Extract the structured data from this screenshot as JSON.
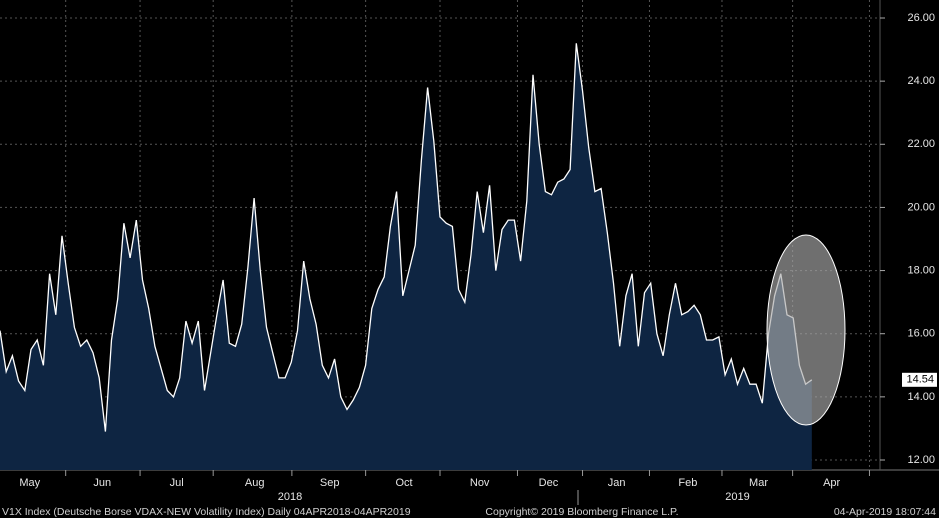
{
  "chart_data": {
    "type": "area",
    "values": [
      16.1,
      14.8,
      15.3,
      14.5,
      14.2,
      15.5,
      15.8,
      15.0,
      17.9,
      16.6,
      19.1,
      17.6,
      16.2,
      15.6,
      15.8,
      15.4,
      14.6,
      12.9,
      15.8,
      17.1,
      19.5,
      18.4,
      19.6,
      17.7,
      16.8,
      15.6,
      14.9,
      14.2,
      14.0,
      14.6,
      16.4,
      15.7,
      16.4,
      14.2,
      15.4,
      16.6,
      17.7,
      15.7,
      15.6,
      16.3,
      18.1,
      20.3,
      18.0,
      16.2,
      15.4,
      14.6,
      14.6,
      15.1,
      16.1,
      18.3,
      17.1,
      16.3,
      15.0,
      14.6,
      15.2,
      14.0,
      13.6,
      13.9,
      14.3,
      15.0,
      16.8,
      17.4,
      17.8,
      19.4,
      20.5,
      17.2,
      18.0,
      18.8,
      21.5,
      23.8,
      22.1,
      19.7,
      19.5,
      19.4,
      17.4,
      17.0,
      18.5,
      20.5,
      19.2,
      20.7,
      18.0,
      19.3,
      19.6,
      19.6,
      18.3,
      20.2,
      24.2,
      22.0,
      20.5,
      20.4,
      20.8,
      20.9,
      21.2,
      25.2,
      23.7,
      21.9,
      20.5,
      20.6,
      19.2,
      17.6,
      15.6,
      17.2,
      17.9,
      15.6,
      17.3,
      17.6,
      16.0,
      15.3,
      16.6,
      17.6,
      16.6,
      16.7,
      16.9,
      16.6,
      15.8,
      15.8,
      15.9,
      14.7,
      15.2,
      14.4,
      14.9,
      14.4,
      14.4,
      13.8,
      16.0,
      17.2,
      17.9,
      16.6,
      16.5,
      15.0,
      14.4,
      14.54
    ],
    "color": "#0e2542",
    "line_color": "#ffffff",
    "xlim": [
      0,
      142
    ],
    "xgrid": [
      10.6,
      22.6,
      34.4,
      47.1,
      59,
      71,
      83.5,
      94,
      104.8,
      116.5,
      127.9,
      140.3
    ],
    "month_labels": [
      {
        "value": 4.8,
        "label": "May"
      },
      {
        "value": 16.5,
        "label": "Jun"
      },
      {
        "value": 28.5,
        "label": "Jul"
      },
      {
        "value": 41.1,
        "label": "Aug"
      },
      {
        "value": 53.2,
        "label": "Sep"
      },
      {
        "value": 65.2,
        "label": "Oct"
      },
      {
        "value": 77.4,
        "label": "Nov"
      },
      {
        "value": 88.5,
        "label": "Dec"
      },
      {
        "value": 99.5,
        "label": "Jan"
      },
      {
        "value": 111,
        "label": "Feb"
      },
      {
        "value": 122.4,
        "label": "Mar"
      },
      {
        "value": 134.2,
        "label": "Apr"
      }
    ],
    "year_labels": [
      {
        "value": 46.8,
        "label": "2018"
      },
      {
        "value": 119,
        "label": "2019"
      }
    ],
    "ylim": [
      12,
      26
    ],
    "yticks": [
      {
        "value": 12,
        "label": "12.00"
      },
      {
        "value": 14,
        "label": "14.00"
      },
      {
        "value": 16,
        "label": "16.00"
      },
      {
        "value": 18,
        "label": "18.00"
      },
      {
        "value": 20,
        "label": "20.00"
      },
      {
        "value": 22,
        "label": "22.00"
      },
      {
        "value": 24,
        "label": "24.00"
      },
      {
        "value": 26,
        "label": "26.00"
      }
    ],
    "grid": true,
    "last_label": "14.54",
    "footer_left": "V1X Index (Deutsche Borse VDAX-NEW Volatility Index)  Daily 04APR2018-04APR2019",
    "footer_center": "Copyright© 2019 Bloomberg Finance L.P.",
    "footer_right": "04-Apr-2019 18:07:44"
  }
}
